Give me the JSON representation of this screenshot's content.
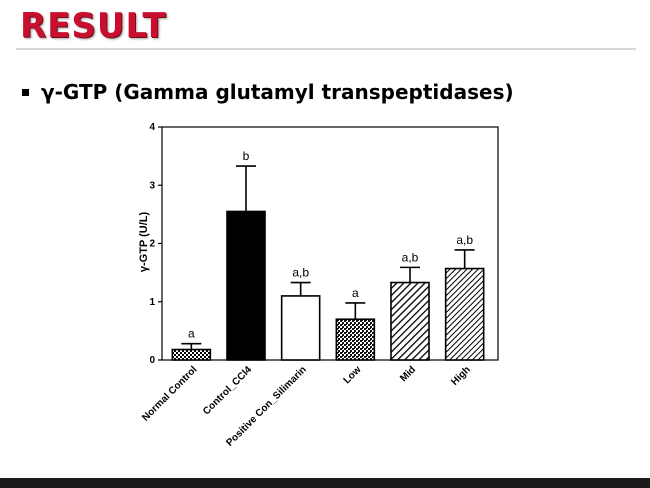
{
  "header": {
    "title": "RESULT",
    "bullet_text": "γ-GTP  (Gamma glutamyl transpeptidases)"
  },
  "colors": {
    "title_red": "#c8102e",
    "bar_outline": "#000000",
    "control_fill": "#000000",
    "plain_fill": "#ffffff",
    "footer": "#1b1b1b"
  },
  "chart_data": {
    "type": "bar",
    "title": "",
    "xlabel": "",
    "ylabel": "γ-GTP (U/L)",
    "ylim": [
      0,
      4
    ],
    "yticks": [
      0,
      1,
      2,
      3,
      4
    ],
    "categories": [
      "Normal Control",
      "Control_CCl4",
      "Positive Con_Silimarin",
      "Low",
      "Mid",
      "High"
    ],
    "values": [
      0.18,
      2.55,
      1.1,
      0.7,
      1.33,
      1.57
    ],
    "errors": [
      0.1,
      0.78,
      0.23,
      0.28,
      0.26,
      0.32
    ],
    "annotations": [
      "a",
      "b",
      "a,b",
      "a",
      "a,b",
      "a,b"
    ],
    "fills": [
      "dots",
      "solid-black",
      "white",
      "checker",
      "diagonal",
      "diagonal-fine"
    ],
    "grid": false,
    "legend": "none"
  }
}
